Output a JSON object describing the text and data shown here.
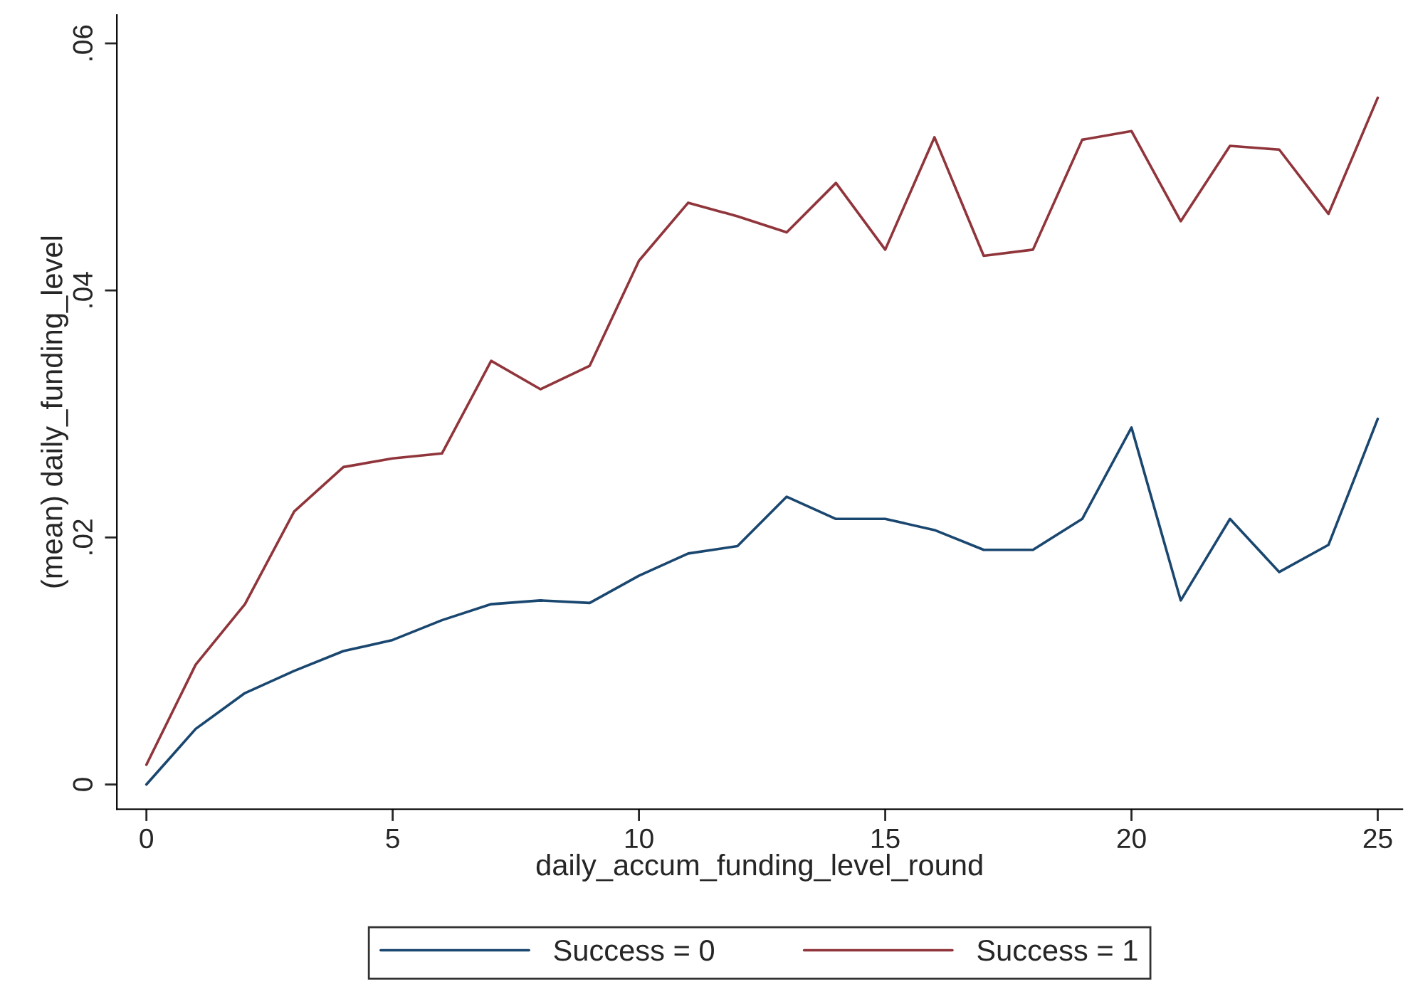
{
  "chart_data": {
    "type": "line",
    "xlabel": "daily_accum_funding_level_round",
    "ylabel": "(mean) daily_funding_level",
    "x": [
      0,
      1,
      2,
      3,
      4,
      5,
      6,
      7,
      8,
      9,
      10,
      11,
      12,
      13,
      14,
      15,
      16,
      17,
      18,
      19,
      20,
      21,
      22,
      23,
      24,
      25
    ],
    "series": [
      {
        "name": "Success = 0",
        "color": "#1a476f",
        "values": [
          0.0,
          0.0045,
          0.0074,
          0.0092,
          0.0108,
          0.0117,
          0.0133,
          0.0146,
          0.0149,
          0.0147,
          0.0169,
          0.0187,
          0.0193,
          0.0233,
          0.0215,
          0.0215,
          0.0206,
          0.019,
          0.019,
          0.0215,
          0.0289,
          0.0149,
          0.0215,
          0.0172,
          0.0194,
          0.0296
        ]
      },
      {
        "name": "Success = 1",
        "color": "#90353b",
        "values": [
          0.0016,
          0.0097,
          0.0146,
          0.0221,
          0.0257,
          0.0264,
          0.0268,
          0.0343,
          0.032,
          0.0339,
          0.0424,
          0.0471,
          0.046,
          0.0447,
          0.0487,
          0.0433,
          0.0524,
          0.0428,
          0.0433,
          0.0522,
          0.0529,
          0.0456,
          0.0517,
          0.0514,
          0.0462,
          0.0556
        ]
      }
    ],
    "xlim": [
      -0.6,
      25.5
    ],
    "ylim": [
      -0.002,
      0.0623
    ],
    "xticks": [
      0,
      5,
      10,
      15,
      20,
      25
    ],
    "yticks": [
      {
        "value": 0,
        "label": "0"
      },
      {
        "value": 0.02,
        "label": ".02"
      },
      {
        "value": 0.04,
        "label": ".04"
      },
      {
        "value": 0.06,
        "label": ".06"
      }
    ],
    "grid": false,
    "legend": "bottom",
    "marker": "none",
    "line_style": "solid"
  }
}
